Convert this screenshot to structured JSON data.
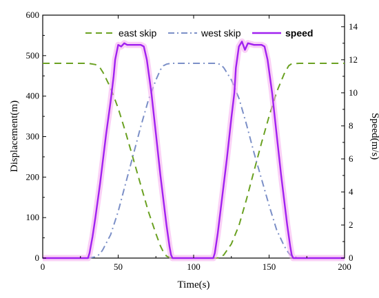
{
  "chart_data": {
    "type": "line",
    "title": "",
    "xlabel": "Time(s)",
    "ylabel_left": "Displacement(m)",
    "ylabel_right": "Speed(m/s)",
    "xlim": [
      0,
      200
    ],
    "ylim_left": [
      0,
      600
    ],
    "ylim_right": [
      0,
      14.7
    ],
    "x_ticks": [
      "0",
      "50",
      "100",
      "150",
      "200"
    ],
    "y_left_ticks": [
      "0",
      "100",
      "200",
      "300",
      "400",
      "500",
      "600"
    ],
    "y_right_ticks": [
      "0",
      "2",
      "4",
      "6",
      "8",
      "10",
      "12",
      "14"
    ],
    "grid": false,
    "legend_position": "top",
    "series": [
      {
        "name": "east skip",
        "axis": "left",
        "color": "#6aa121",
        "style": "dashed",
        "x": [
          0,
          30,
          35,
          38,
          40,
          45,
          50,
          55,
          60,
          65,
          70,
          75,
          78,
          80,
          82,
          85,
          90,
          115,
          118,
          120,
          125,
          130,
          135,
          140,
          145,
          150,
          155,
          160,
          163,
          165,
          170,
          200
        ],
        "y": [
          481,
          481,
          478,
          470,
          458,
          420,
          370,
          310,
          245,
          180,
          115,
          60,
          30,
          15,
          5,
          0,
          0,
          0,
          2,
          8,
          35,
          80,
          145,
          215,
          285,
          350,
          410,
          455,
          475,
          480,
          481,
          481
        ]
      },
      {
        "name": "west skip",
        "axis": "left",
        "color": "#7b8fc7",
        "style": "dashdot",
        "x": [
          0,
          30,
          35,
          38,
          40,
          45,
          50,
          55,
          60,
          65,
          70,
          75,
          78,
          80,
          82,
          85,
          90,
          115,
          118,
          120,
          125,
          130,
          135,
          140,
          145,
          150,
          155,
          160,
          163,
          165,
          170,
          200
        ],
        "y": [
          0,
          0,
          3,
          10,
          22,
          58,
          115,
          185,
          255,
          325,
          390,
          440,
          465,
          475,
          479,
          481,
          481,
          481,
          478,
          470,
          440,
          395,
          330,
          260,
          195,
          130,
          70,
          30,
          12,
          5,
          0,
          0
        ]
      },
      {
        "name": "speed",
        "axis": "right",
        "color": "#a020f0",
        "style": "solid",
        "x": [
          0,
          30,
          31,
          33,
          35,
          38,
          40,
          42,
          45,
          47,
          48,
          50,
          52,
          54,
          56,
          60,
          65,
          67,
          69,
          72,
          75,
          78,
          80,
          82,
          84,
          85,
          86,
          90,
          113,
          114,
          116,
          118,
          120,
          122,
          125,
          127,
          128,
          130,
          132,
          134,
          136,
          140,
          145,
          147,
          149,
          152,
          155,
          158,
          160,
          162,
          164,
          165,
          166,
          170,
          200
        ],
        "y": [
          0,
          0,
          0.3,
          1.3,
          2.5,
          4.5,
          6,
          7.5,
          9.5,
          11,
          12,
          12.9,
          12.8,
          13,
          12.9,
          12.9,
          12.9,
          12.8,
          12,
          10,
          7.5,
          5,
          3.5,
          2,
          0.7,
          0.2,
          0,
          0,
          0,
          0.3,
          1.5,
          3,
          4.5,
          6,
          8.5,
          10,
          11.5,
          12.8,
          13.1,
          12.6,
          13,
          12.9,
          12.9,
          12.8,
          12,
          10,
          7.5,
          5,
          3.5,
          2,
          0.7,
          0.2,
          0,
          0,
          0
        ]
      }
    ]
  }
}
